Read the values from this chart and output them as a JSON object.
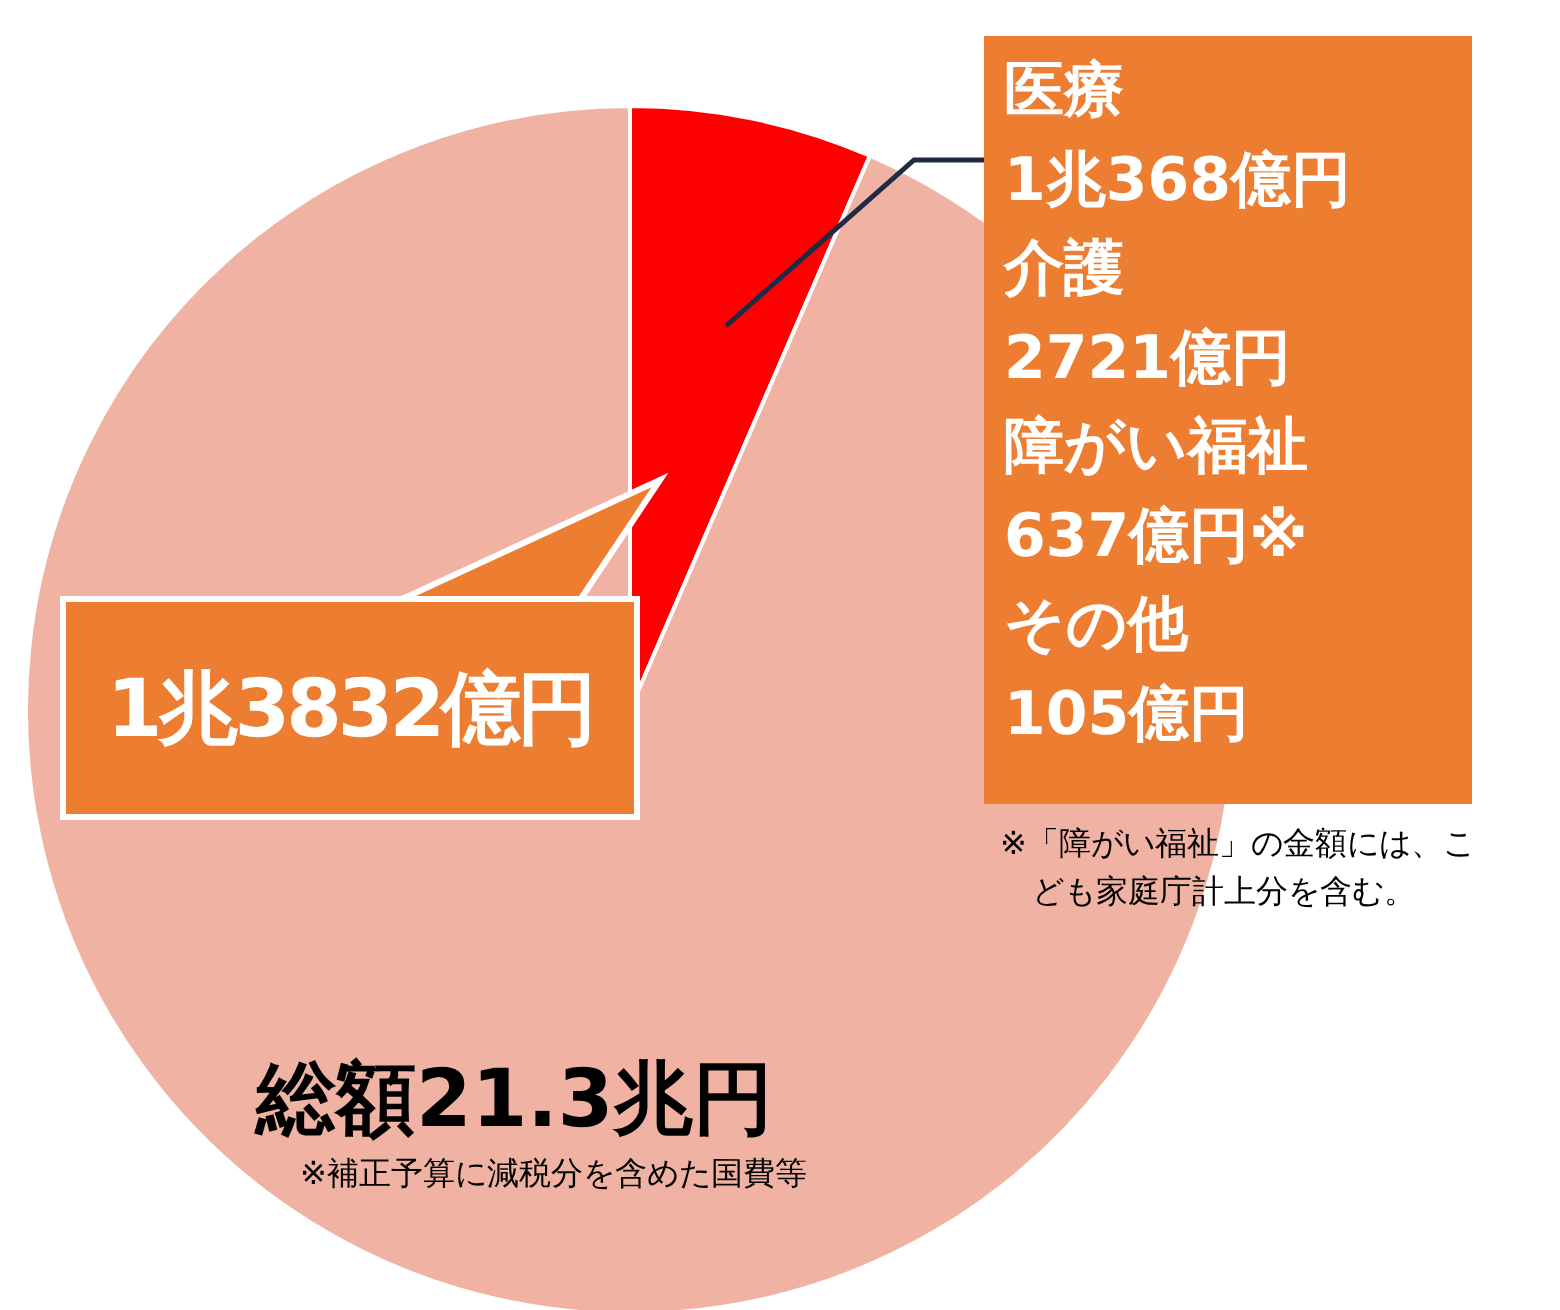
{
  "chart_data": {
    "type": "pie",
    "categories": [
      null,
      null
    ],
    "values": [
      6.5,
      93.5
    ],
    "colors": [
      "#ff0000",
      "#f0b3a3"
    ],
    "legend": false,
    "annotations": [
      "1兆3832億円",
      "総額21.3兆円",
      "※補正予算に減税分を含めた国費等",
      "医療",
      "1兆368億円",
      "介護",
      "2721億円",
      "障がい福祉",
      "637億円※",
      "その他",
      "105億円",
      "※「障がい福祉」の金額には、こども家庭庁計上分を含む。"
    ]
  }
}
